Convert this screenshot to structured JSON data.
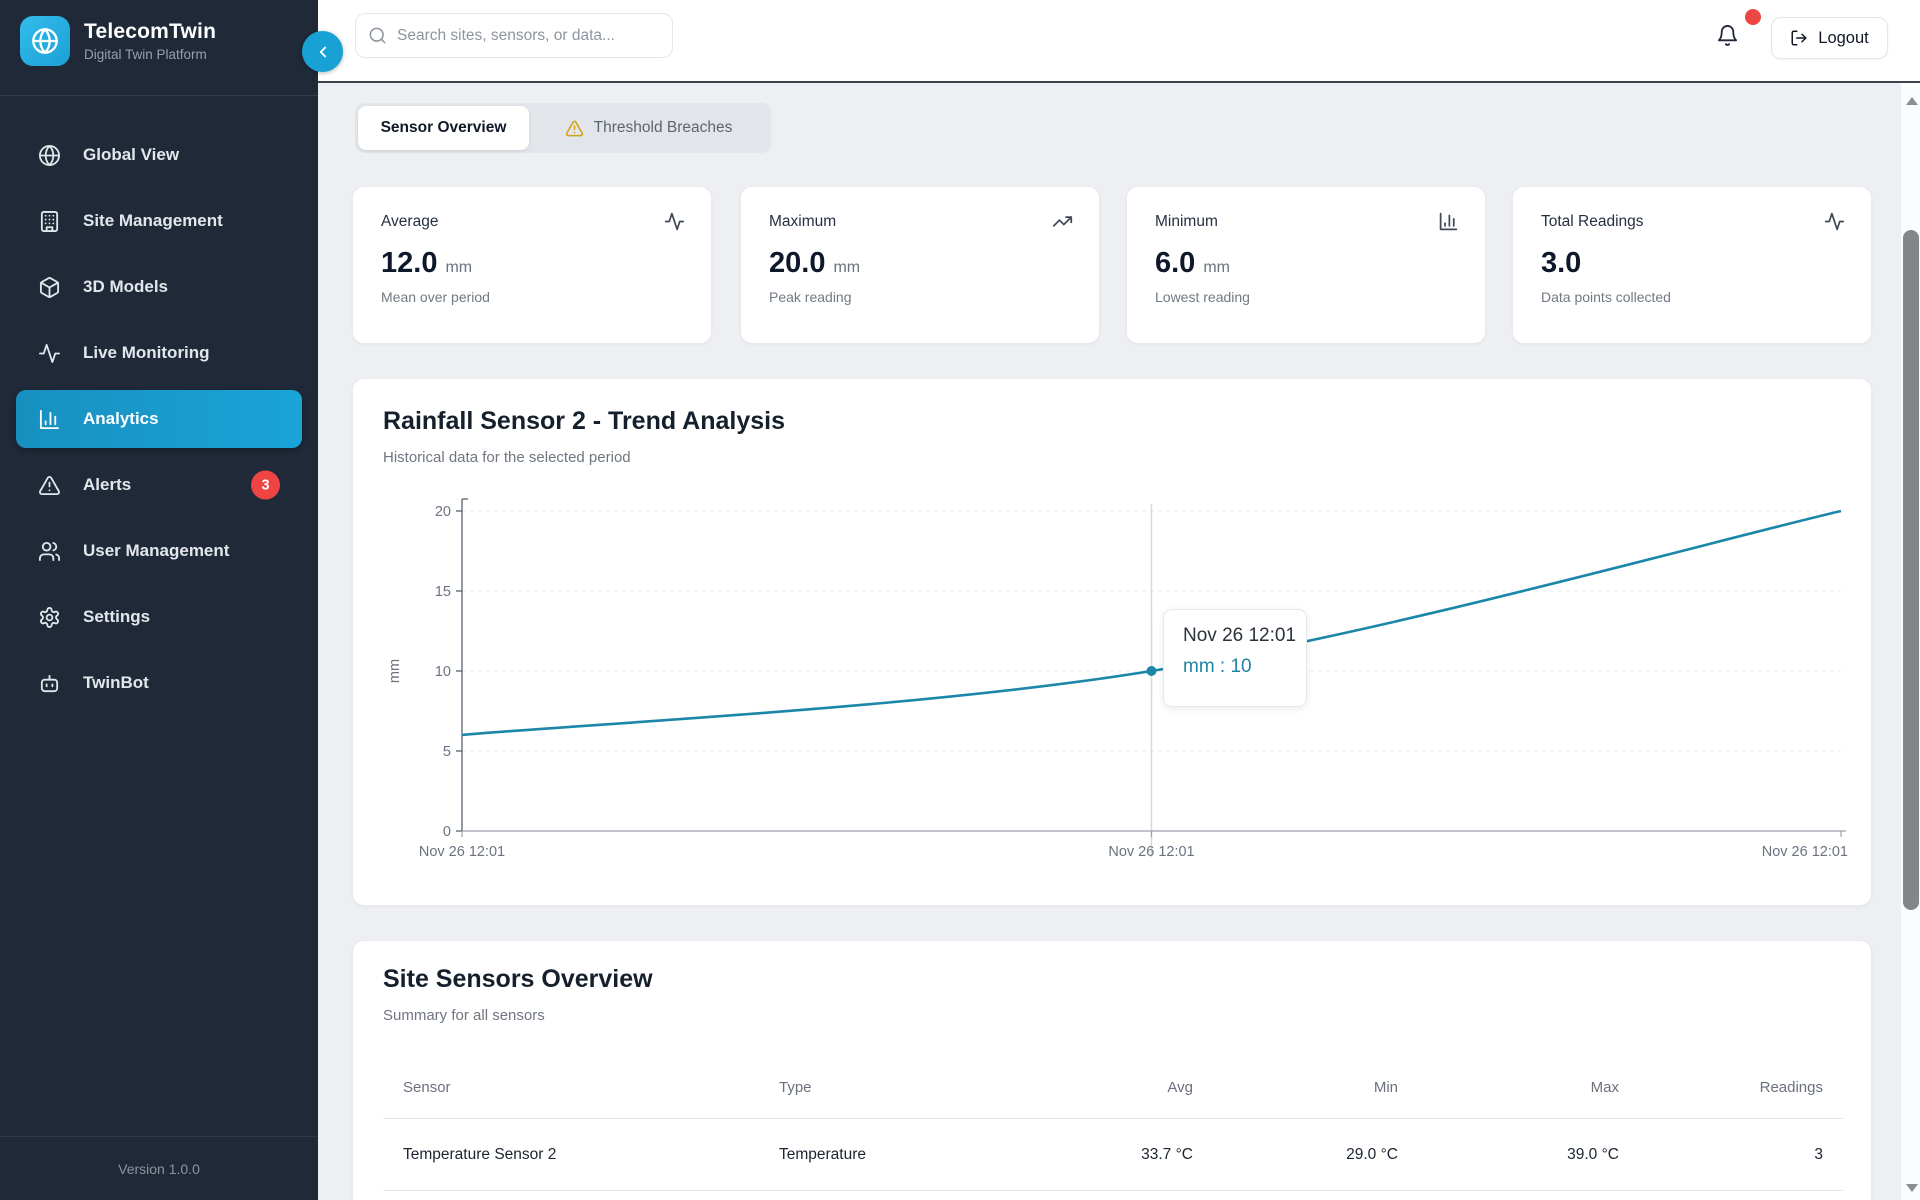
{
  "sidebar": {
    "logo_title": "TelecomTwin",
    "logo_subtitle": "Digital Twin Platform",
    "items": [
      {
        "label": "Global View",
        "icon": "globe-icon"
      },
      {
        "label": "Site Management",
        "icon": "building-icon"
      },
      {
        "label": "3D Models",
        "icon": "cube-icon"
      },
      {
        "label": "Live Monitoring",
        "icon": "activity-icon"
      },
      {
        "label": "Analytics",
        "icon": "bar-chart-icon",
        "active": true
      },
      {
        "label": "Alerts",
        "icon": "alert-triangle-icon",
        "badge": "3"
      },
      {
        "label": "User Management",
        "icon": "users-icon"
      },
      {
        "label": "Settings",
        "icon": "gear-icon"
      },
      {
        "label": "TwinBot",
        "icon": "bot-icon"
      }
    ],
    "version": "Version 1.0.0"
  },
  "header": {
    "search_placeholder": "Search sites, sensors, or data...",
    "logout_label": "Logout"
  },
  "tabs": [
    {
      "label": "Sensor Overview",
      "active": true
    },
    {
      "label": "Threshold Breaches",
      "icon": "warning-triangle-icon",
      "active": false
    }
  ],
  "stat_cards": [
    {
      "title": "Average",
      "value": "12.0",
      "unit": "mm",
      "subtitle": "Mean over period",
      "icon": "activity-icon"
    },
    {
      "title": "Maximum",
      "value": "20.0",
      "unit": "mm",
      "subtitle": "Peak reading",
      "icon": "trending-up-icon"
    },
    {
      "title": "Minimum",
      "value": "6.0",
      "unit": "mm",
      "subtitle": "Lowest reading",
      "icon": "bar-chart-icon"
    },
    {
      "title": "Total Readings",
      "value": "3.0",
      "unit": "",
      "subtitle": "Data points collected",
      "icon": "activity-icon"
    }
  ],
  "chart": {
    "title": "Rainfall Sensor 2 - Trend Analysis",
    "subtitle": "Historical data for the selected period",
    "tooltip": {
      "label": "Nov 26 12:01",
      "value_line": "mm : 10"
    }
  },
  "chart_data": {
    "type": "line",
    "x": [
      "Nov 26 12:01",
      "Nov 26 12:01",
      "Nov 26 12:01"
    ],
    "series": [
      {
        "name": "mm",
        "values": [
          6,
          10,
          20
        ]
      }
    ],
    "title": "Rainfall Sensor 2 - Trend Analysis",
    "xlabel": "",
    "ylabel": "mm",
    "ylim": [
      0,
      20
    ],
    "yticks": [
      0,
      5,
      10,
      15,
      20
    ],
    "grid": "dashed-horizontal",
    "legend": "none",
    "line_color": "#1b87a8",
    "highlight": {
      "index": 1,
      "value": 10,
      "tooltip": "Nov 26 12:01 — mm : 10"
    }
  },
  "table_section": {
    "title": "Site Sensors Overview",
    "subtitle": "Summary for all sensors",
    "columns": [
      "Sensor",
      "Type",
      "Avg",
      "Min",
      "Max",
      "Readings"
    ],
    "rows": [
      [
        "Temperature Sensor 2",
        "Temperature",
        "33.7 °C",
        "29.0 °C",
        "39.0 °C",
        "3"
      ]
    ]
  },
  "colors": {
    "sidebar_bg": "#1f2937",
    "accent_blue": "#18a1d5",
    "active_nav_gradient": [
      "#1790bf",
      "#1aa4d8"
    ],
    "badge_red": "#ee4444",
    "warning_amber": "#d4a017",
    "line_teal": "#1b87a8",
    "page_bg": "#edeff2"
  }
}
